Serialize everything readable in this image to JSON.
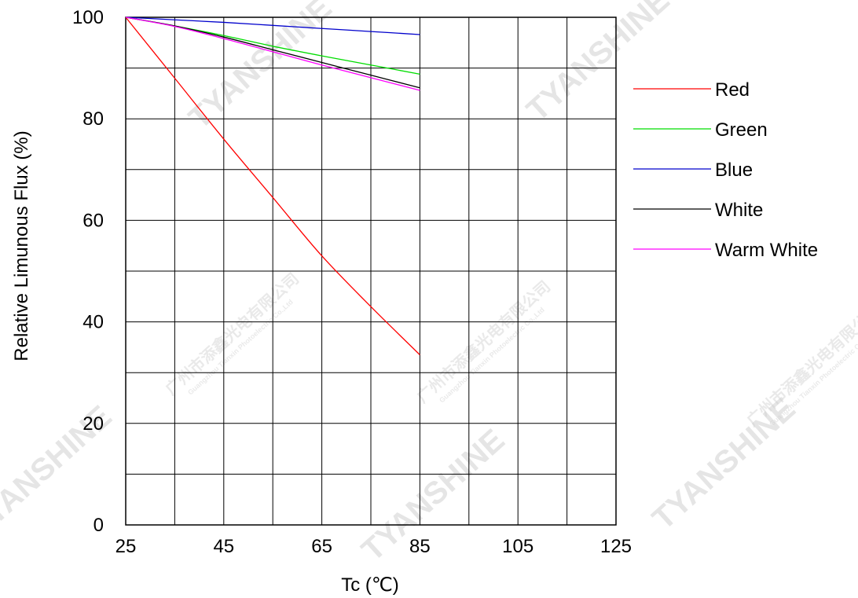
{
  "chart_data": {
    "type": "line",
    "xlabel": "Tc (℃)",
    "ylabel": "Relative  Limunous  Flux  (%)",
    "xlim": [
      25,
      125
    ],
    "ylim": [
      0,
      100
    ],
    "x_ticks": [
      25,
      45,
      65,
      85,
      105,
      125
    ],
    "y_ticks": [
      0,
      20,
      40,
      60,
      80,
      100
    ],
    "x_grid_step": 10,
    "y_grid_step": 10,
    "grid": true,
    "legend_position": "right",
    "series": [
      {
        "name": "Red",
        "color": "#ff0000",
        "x": [
          25,
          35,
          45,
          55,
          65,
          75,
          85
        ],
        "y": [
          100,
          88,
          76,
          64.5,
          53,
          43,
          33.5
        ]
      },
      {
        "name": "Green",
        "color": "#00dd00",
        "x": [
          25,
          35,
          45,
          55,
          65,
          75,
          85
        ],
        "y": [
          100,
          98.3,
          96.4,
          94.3,
          92.4,
          90.6,
          88.8
        ]
      },
      {
        "name": "Blue",
        "color": "#0000cc",
        "x": [
          25,
          35,
          45,
          55,
          65,
          75,
          85
        ],
        "y": [
          100,
          99.5,
          99,
          98.4,
          97.8,
          97.2,
          96.6
        ]
      },
      {
        "name": "White",
        "color": "#000000",
        "x": [
          25,
          35,
          45,
          55,
          65,
          75,
          85
        ],
        "y": [
          100,
          98.3,
          96.1,
          93.6,
          91.1,
          88.6,
          86.1
        ]
      },
      {
        "name": "Warm White",
        "color": "#ff00ff",
        "x": [
          25,
          35,
          45,
          55,
          65,
          75,
          85
        ],
        "y": [
          100,
          98.2,
          95.8,
          93.2,
          90.6,
          88.1,
          85.6
        ]
      }
    ]
  },
  "watermarks": [
    "TYANSHINE",
    "广州市添鑫光电有限公司",
    "Guangzhou Tianxin Photoelectric Co.,Ltd"
  ]
}
